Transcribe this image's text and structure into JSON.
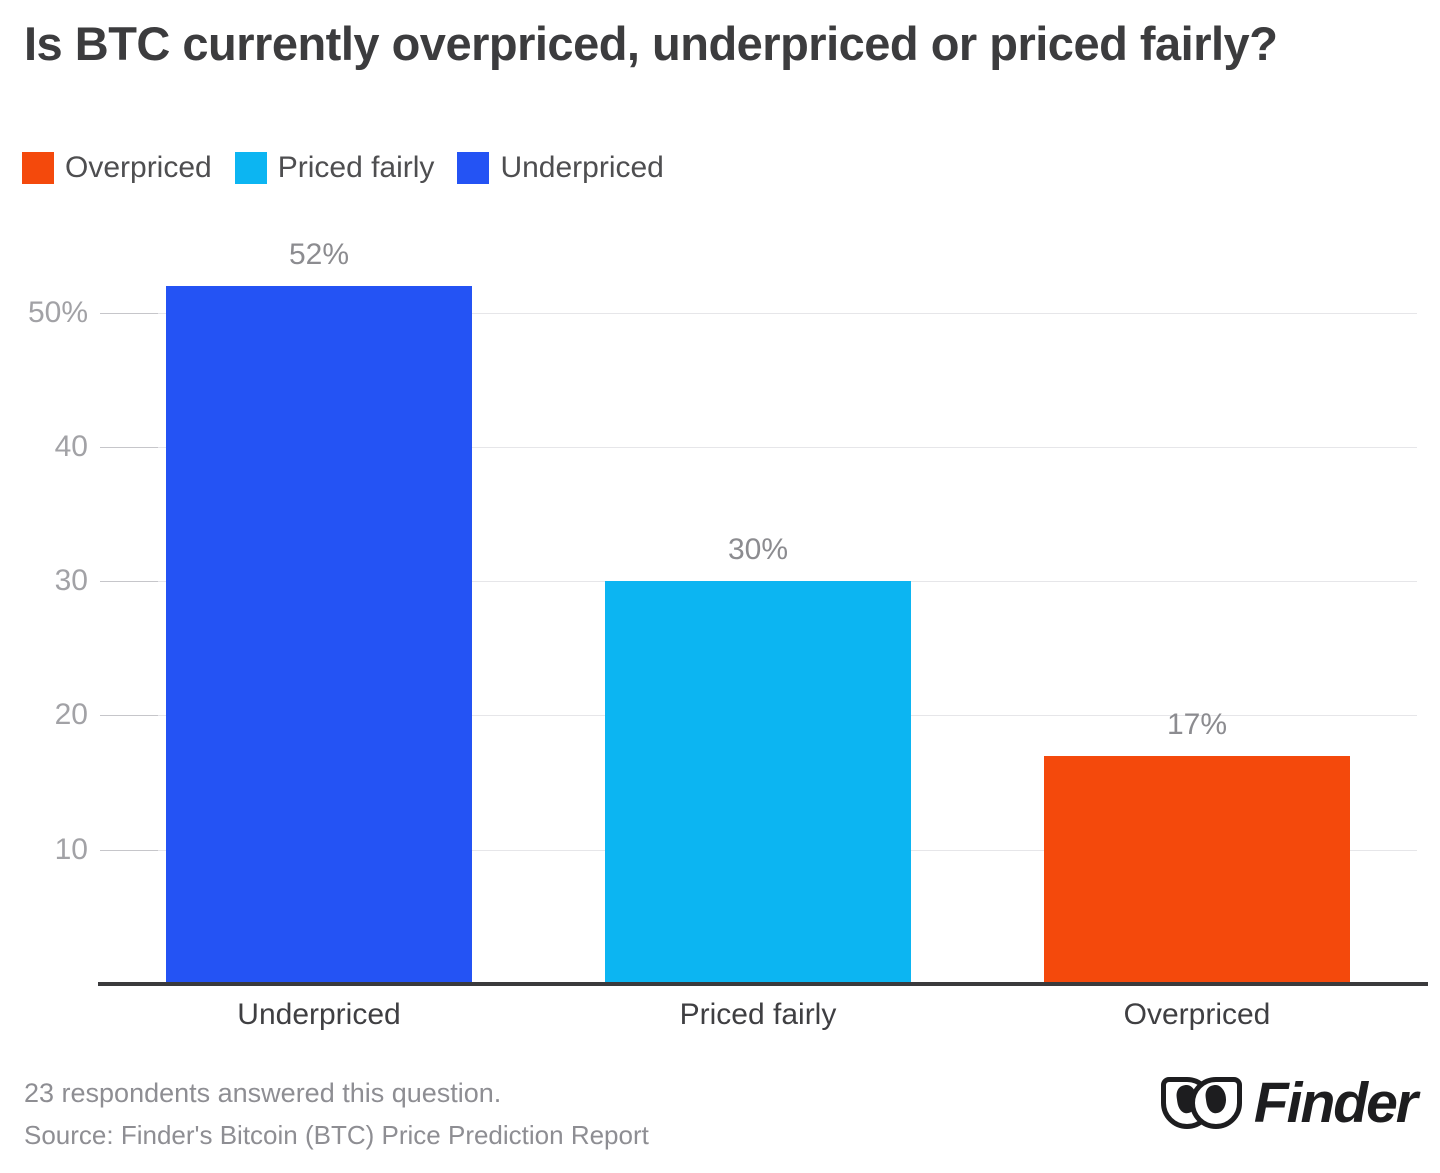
{
  "title": "Is BTC currently overpriced, underpriced or priced fairly?",
  "legend": {
    "items": [
      {
        "label": "Overpriced",
        "color": "#f4490c"
      },
      {
        "label": "Priced fairly",
        "color": "#0cb5f2"
      },
      {
        "label": "Underpriced",
        "color": "#2453f4"
      }
    ]
  },
  "chart_data": {
    "type": "bar",
    "title": "Is BTC currently overpriced, underpriced or priced fairly?",
    "categories": [
      "Underpriced",
      "Priced fairly",
      "Overpriced"
    ],
    "values": [
      52,
      30,
      17
    ],
    "data_labels": [
      "52%",
      "30%",
      "17%"
    ],
    "bar_colors": [
      "#2453f4",
      "#0cb5f2",
      "#f4490c"
    ],
    "xlabel": "",
    "ylabel": "",
    "ylim": [
      0,
      55
    ],
    "yticks": [
      {
        "value": 10,
        "label": "10"
      },
      {
        "value": 20,
        "label": "20"
      },
      {
        "value": 30,
        "label": "30"
      },
      {
        "value": 40,
        "label": "40"
      },
      {
        "value": 50,
        "label": "50%"
      }
    ],
    "grid": true,
    "legend_position": "top-left"
  },
  "footer": {
    "note": "23 respondents answered this question.",
    "source": "Source: Finder's Bitcoin (BTC) Price Prediction Report"
  },
  "logo": {
    "text": "Finder"
  },
  "colors": {
    "background": "#ffffff",
    "title": "#3c3c3e",
    "legend_text": "#4e4e50",
    "gridline": "#e6e6e9",
    "tick_dash": "#c6c6ca",
    "ytick_text": "#a2a2a6",
    "xtick_text": "#3f3f42",
    "value_label_text": "#8c8c90",
    "axis_line": "#3a3a3c",
    "footer_text": "#8e8e93",
    "logo": "#1d1d1f"
  }
}
